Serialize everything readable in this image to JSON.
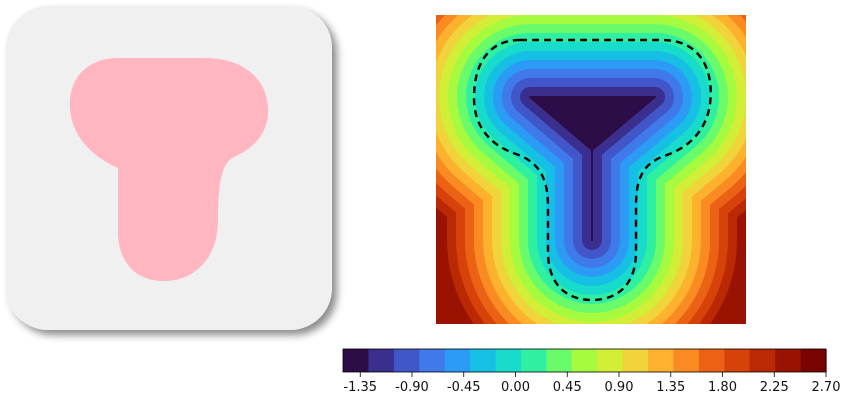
{
  "left_panel": {
    "card_color": "#f0f0f0",
    "shape_color": "#ffb6c1",
    "shadow_color": "#8a8a8a"
  },
  "chart_data": {
    "type": "heatmap",
    "title": "",
    "xlabel": "",
    "ylabel": "",
    "colormap": "turbo-like (dark purple -> blue -> cyan -> green -> yellow -> orange -> dark red)",
    "value_range": [
      -1.5,
      2.7
    ],
    "contour_levels": 24,
    "zero_contour": {
      "style": "dashed",
      "color": "#000000"
    },
    "colorbar": {
      "orientation": "horizontal",
      "position": "bottom",
      "ticks": [
        "-1.35",
        "-0.90",
        "-0.45",
        "0.00",
        "0.45",
        "0.90",
        "1.35",
        "1.80",
        "2.25",
        "2.70"
      ],
      "tick_values": [
        -1.35,
        -0.9,
        -0.45,
        0.0,
        0.45,
        0.9,
        1.35,
        1.8,
        2.25,
        2.7
      ],
      "colors": [
        "#2d0d47",
        "#3a2f8f",
        "#4156c8",
        "#3f79ea",
        "#2c9bf5",
        "#16c0e5",
        "#17dccb",
        "#2ef0a0",
        "#6afb6b",
        "#a6fb3f",
        "#d2ee36",
        "#f1d33b",
        "#fdb12d",
        "#fa8b22",
        "#ec6215",
        "#d6420a",
        "#bb2804",
        "#9a1302",
        "#7a0403"
      ]
    }
  }
}
